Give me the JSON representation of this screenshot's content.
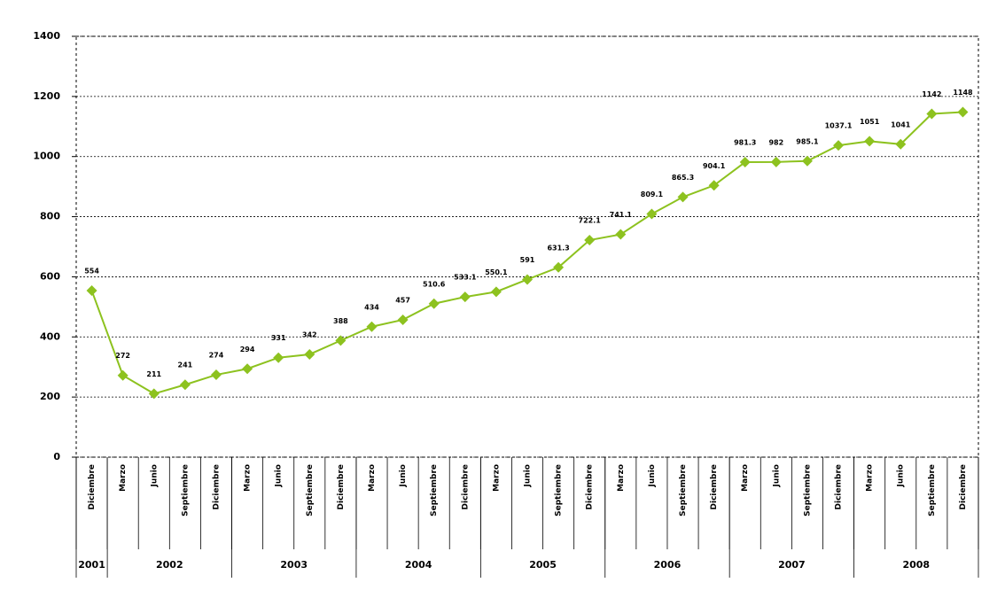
{
  "chart_data": {
    "type": "line",
    "categories": [
      "Diciembre",
      "Marzo",
      "Junio",
      "Septiembre",
      "Diciembre",
      "Marzo",
      "Junio",
      "Septiembre",
      "Diciembre",
      "Marzo",
      "Junio",
      "Septiembre",
      "Diciembre",
      "Marzo",
      "Junio",
      "Septiembre",
      "Diciembre",
      "Marzo",
      "Junio",
      "Septiembre",
      "Diciembre",
      "Marzo",
      "Junio",
      "Septiembre",
      "Diciembre",
      "Marzo",
      "Junio",
      "Septiembre",
      "Diciembre"
    ],
    "years": [
      "2001",
      "2002",
      null,
      null,
      null,
      "2003",
      null,
      null,
      null,
      "2004",
      null,
      null,
      null,
      "2005",
      null,
      null,
      null,
      "2006",
      null,
      null,
      null,
      "2007",
      null,
      null,
      null,
      "2008",
      null,
      null,
      null
    ],
    "values": [
      554,
      272,
      211,
      241,
      274,
      294,
      331,
      342,
      388,
      434,
      457,
      510.6,
      533.1,
      550.1,
      591,
      631.3,
      722.1,
      741.1,
      809.1,
      865.3,
      904.1,
      981.3,
      982,
      985.1,
      1037.1,
      1051,
      1041,
      1142,
      1148
    ],
    "color": "#8dc21f",
    "ylim": [
      0,
      1400
    ],
    "yticks": [
      0,
      200,
      400,
      600,
      800,
      1000,
      1200,
      1400
    ],
    "grid": true
  }
}
